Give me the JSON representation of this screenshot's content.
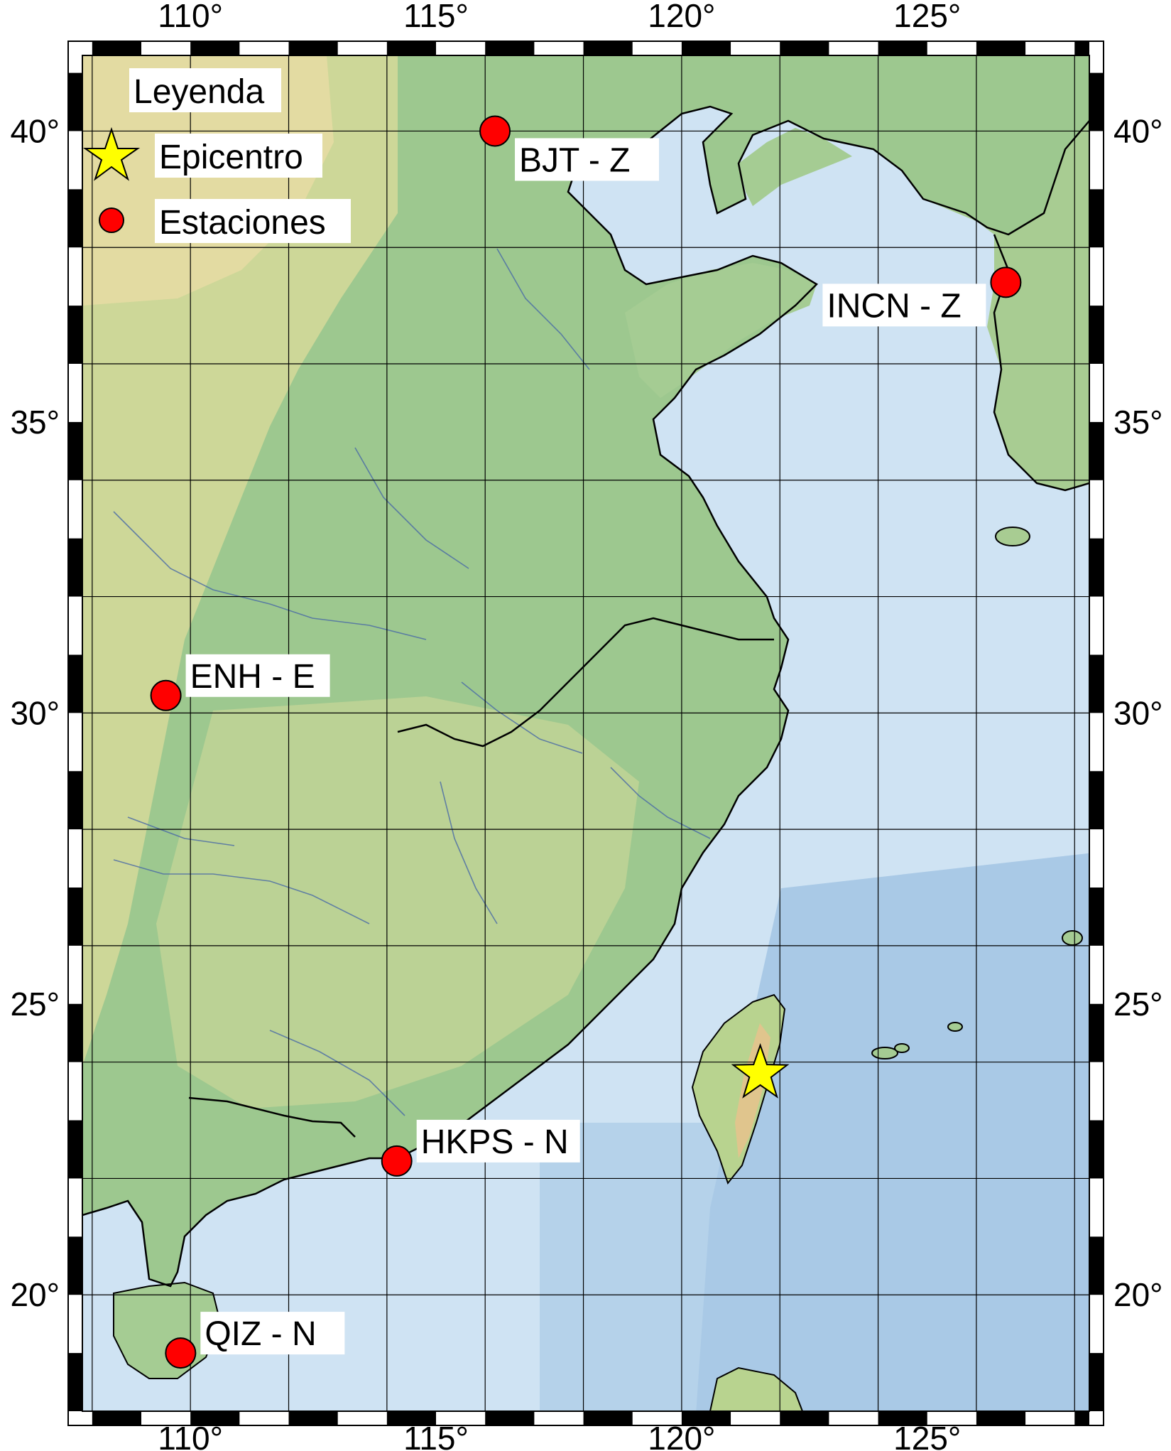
{
  "map": {
    "lon_range": [
      107.8,
      128.3
    ],
    "lat_range": [
      18.0,
      41.3
    ],
    "lon_ticks": [
      110,
      115,
      120,
      125
    ],
    "lat_ticks": [
      20,
      25,
      30,
      35,
      40
    ],
    "lon_tick_labels": [
      "110°",
      "115°",
      "120°",
      "125°"
    ],
    "lat_tick_labels": [
      "20°",
      "25°",
      "30°",
      "35°",
      "40°"
    ],
    "grid_lon": [
      108,
      110,
      112,
      114,
      116,
      118,
      120,
      122,
      124,
      126,
      128
    ],
    "grid_lat": [
      18,
      20,
      22,
      24,
      26,
      28,
      30,
      32,
      34,
      36,
      38,
      40
    ],
    "colors": {
      "water": "#cfe3f3",
      "deep_water": "#a9c9e6",
      "lowland": "#9dc88f",
      "upland": "#c8d89a",
      "highland": "#e6dba3",
      "station": "#ff0000",
      "epicenter": "#ffff00"
    }
  },
  "legend": {
    "title": "Leyenda",
    "epicenter_label": "Epicentro",
    "stations_label": "Estaciones"
  },
  "stations": [
    {
      "id": "bjt",
      "label": "BJT - Z",
      "lon": 116.2,
      "lat": 40.0
    },
    {
      "id": "incn",
      "label": "INCN - Z",
      "lon": 126.6,
      "lat": 37.4
    },
    {
      "id": "enh",
      "label": "ENH - E",
      "lon": 109.5,
      "lat": 30.3
    },
    {
      "id": "hkps",
      "label": "HKPS - N",
      "lon": 114.2,
      "lat": 22.3
    },
    {
      "id": "qiz",
      "label": "QIZ - N",
      "lon": 109.8,
      "lat": 19.0
    }
  ],
  "epicenter": {
    "lon": 121.6,
    "lat": 23.8
  }
}
